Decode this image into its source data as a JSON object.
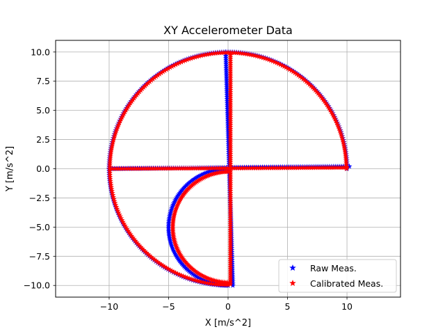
{
  "chart_data": {
    "type": "scatter",
    "title": "XY Accelerometer Data",
    "xlabel": "X [m/s^2]",
    "ylabel": "Y [m/s^2]",
    "xlim": [
      -14.5,
      14.5
    ],
    "ylim": [
      -11,
      11
    ],
    "x_ticks": [
      -10,
      -5,
      0,
      5,
      10
    ],
    "x_tick_labels": [
      "−10",
      "−5",
      "0",
      "5",
      "10"
    ],
    "y_ticks": [
      -10,
      -7.5,
      -5,
      -2.5,
      0,
      2.5,
      5,
      7.5,
      10
    ],
    "y_tick_labels": [
      "−10.0",
      "−7.5",
      "−5.0",
      "−2.5",
      "0.0",
      "2.5",
      "5.0",
      "7.5",
      "10.0"
    ],
    "grid": true,
    "legend_position": "lower-right",
    "marker": "star",
    "series": [
      {
        "name": "Raw Meas.",
        "color": "#0000ff",
        "segments": [
          {
            "shape": "arc",
            "center": [
              0,
              0
            ],
            "radius": 10,
            "start_deg": 0,
            "end_deg": 90,
            "count": 90
          },
          {
            "shape": "arc",
            "center": [
              0,
              0
            ],
            "radius": 10,
            "start_deg": 90,
            "end_deg": 180,
            "count": 90
          },
          {
            "shape": "arc",
            "center": [
              0,
              0
            ],
            "radius": 10,
            "start_deg": 180,
            "end_deg": 270,
            "count": 90
          },
          {
            "shape": "line",
            "from": [
              -10,
              0
            ],
            "to": [
              10.2,
              0.2
            ],
            "count": 120
          },
          {
            "shape": "line",
            "from": [
              -0.2,
              10
            ],
            "to": [
              0.4,
              -10
            ],
            "count": 120
          },
          {
            "shape": "arc",
            "center": [
              0,
              -5
            ],
            "radius": 5,
            "start_deg": 90,
            "end_deg": 270,
            "count": 110
          }
        ]
      },
      {
        "name": "Calibrated Meas.",
        "color": "#ff0000",
        "segments": [
          {
            "shape": "arc",
            "center": [
              0,
              0
            ],
            "radius": 9.95,
            "start_deg": 0,
            "end_deg": 90,
            "count": 90
          },
          {
            "shape": "arc",
            "center": [
              0,
              0
            ],
            "radius": 9.95,
            "start_deg": 90,
            "end_deg": 180,
            "count": 90
          },
          {
            "shape": "arc",
            "center": [
              0,
              0
            ],
            "radius": 9.95,
            "start_deg": 180,
            "end_deg": 270,
            "count": 90
          },
          {
            "shape": "line",
            "from": [
              -9.9,
              0
            ],
            "to": [
              10,
              0.1
            ],
            "count": 120
          },
          {
            "shape": "line",
            "from": [
              0.2,
              9.9
            ],
            "to": [
              0.2,
              -9.9
            ],
            "count": 120
          },
          {
            "shape": "arc",
            "center": [
              0.1,
              -5
            ],
            "radius": 4.75,
            "start_deg": 90,
            "end_deg": 270,
            "count": 110
          }
        ]
      }
    ]
  }
}
